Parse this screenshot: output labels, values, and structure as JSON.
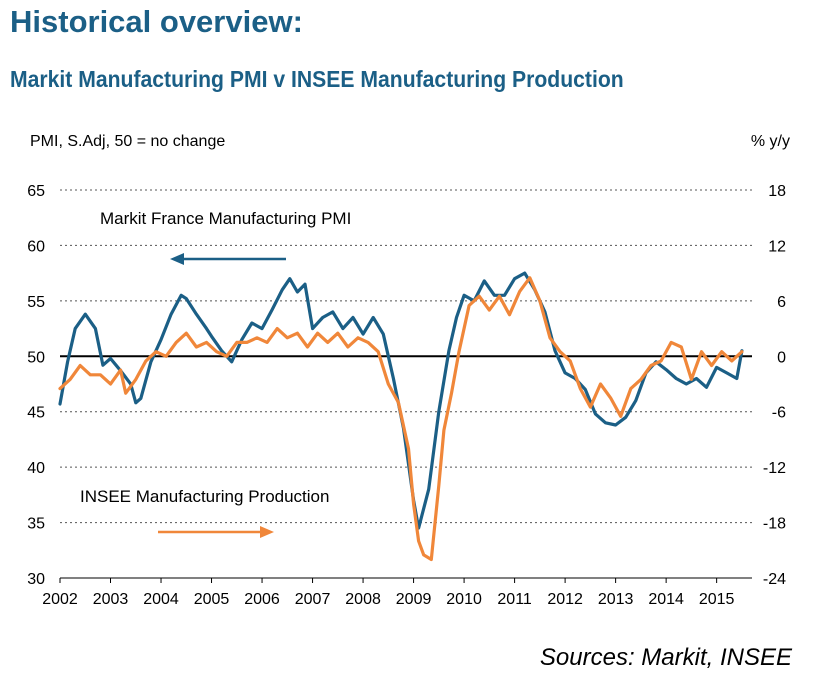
{
  "page": {
    "title": "Historical overview:",
    "subtitle": "Markit Manufacturing PMI v INSEE Manufacturing Production",
    "source": "Sources: Markit, INSEE"
  },
  "colors": {
    "pmi": "#1b5f86",
    "production": "#f0873a",
    "title": "#1b5f86",
    "zero_line": "#000000",
    "grid": "#555555"
  },
  "chart_data": {
    "type": "line",
    "left_axis_title": "PMI, S.Adj, 50 = no change",
    "right_axis_title": "% y/y",
    "ylim_left": [
      30,
      65
    ],
    "ylim_right": [
      -24,
      18
    ],
    "left_ticks": [
      "30",
      "35",
      "40",
      "45",
      "50",
      "55",
      "60",
      "65"
    ],
    "right_ticks": [
      "-24",
      "-18",
      "-12",
      "-6",
      "0",
      "6",
      "12",
      "18"
    ],
    "xlim": [
      2002,
      2015.7
    ],
    "x_ticks": [
      "2002",
      "2003",
      "2004",
      "2005",
      "2006",
      "2007",
      "2008",
      "2009",
      "2010",
      "2011",
      "2012",
      "2013",
      "2014",
      "2015"
    ],
    "grid": "dashed horizontal",
    "reference_line": 50,
    "series": [
      {
        "name": "Markit France Manufacturing PMI",
        "axis": "left",
        "color": "#1b5f86",
        "x": [
          2002.0,
          2002.15,
          2002.3,
          2002.5,
          2002.7,
          2002.85,
          2003.0,
          2003.2,
          2003.4,
          2003.5,
          2003.6,
          2003.8,
          2004.0,
          2004.2,
          2004.4,
          2004.5,
          2004.7,
          2004.9,
          2005.0,
          2005.2,
          2005.4,
          2005.6,
          2005.8,
          2006.0,
          2006.2,
          2006.4,
          2006.55,
          2006.7,
          2006.85,
          2007.0,
          2007.2,
          2007.4,
          2007.6,
          2007.8,
          2008.0,
          2008.2,
          2008.4,
          2008.6,
          2008.8,
          2009.0,
          2009.1,
          2009.3,
          2009.5,
          2009.7,
          2009.85,
          2010.0,
          2010.2,
          2010.4,
          2010.6,
          2010.8,
          2011.0,
          2011.2,
          2011.4,
          2011.6,
          2011.8,
          2012.0,
          2012.2,
          2012.4,
          2012.6,
          2012.8,
          2013.0,
          2013.2,
          2013.4,
          2013.6,
          2013.8,
          2014.0,
          2014.2,
          2014.4,
          2014.6,
          2014.8,
          2015.0,
          2015.2,
          2015.4,
          2015.5
        ],
        "values": [
          45.7,
          49.5,
          52.5,
          53.8,
          52.5,
          49.2,
          49.8,
          48.7,
          47.5,
          45.8,
          46.2,
          49.5,
          51.5,
          53.8,
          55.5,
          55.2,
          53.8,
          52.5,
          51.8,
          50.5,
          49.5,
          51.5,
          53.0,
          52.5,
          54.2,
          56.0,
          57.0,
          55.8,
          56.5,
          52.5,
          53.5,
          54.0,
          52.5,
          53.5,
          52.0,
          53.5,
          52.0,
          48.0,
          43.5,
          37.0,
          34.5,
          38.0,
          45.0,
          50.5,
          53.5,
          55.5,
          55.0,
          56.8,
          55.5,
          55.5,
          57.0,
          57.5,
          56.0,
          54.0,
          50.5,
          48.5,
          48.0,
          47.0,
          44.8,
          44.0,
          43.8,
          44.5,
          46.0,
          48.5,
          49.5,
          48.8,
          48.0,
          47.5,
          48.0,
          47.2,
          49.0,
          48.5,
          48.0,
          50.5
        ]
      },
      {
        "name": "INSEE Manufacturing Production",
        "axis": "right",
        "color": "#f0873a",
        "x": [
          2002.0,
          2002.2,
          2002.4,
          2002.6,
          2002.8,
          2003.0,
          2003.2,
          2003.3,
          2003.5,
          2003.7,
          2003.9,
          2004.1,
          2004.3,
          2004.5,
          2004.7,
          2004.9,
          2005.1,
          2005.3,
          2005.5,
          2005.7,
          2005.9,
          2006.1,
          2006.3,
          2006.5,
          2006.7,
          2006.9,
          2007.1,
          2007.3,
          2007.5,
          2007.7,
          2007.9,
          2008.1,
          2008.3,
          2008.5,
          2008.7,
          2008.9,
          2009.0,
          2009.1,
          2009.2,
          2009.35,
          2009.5,
          2009.6,
          2009.75,
          2009.9,
          2010.1,
          2010.3,
          2010.5,
          2010.7,
          2010.9,
          2011.1,
          2011.3,
          2011.5,
          2011.7,
          2011.9,
          2012.1,
          2012.3,
          2012.5,
          2012.7,
          2012.9,
          2013.1,
          2013.3,
          2013.5,
          2013.7,
          2013.9,
          2014.1,
          2014.3,
          2014.5,
          2014.7,
          2014.9,
          2015.1,
          2015.3,
          2015.5
        ],
        "values": [
          -3.5,
          -2.5,
          -1.0,
          -2.0,
          -2.0,
          -3.0,
          -1.5,
          -4.0,
          -2.5,
          -0.5,
          0.5,
          0.0,
          1.5,
          2.5,
          1.0,
          1.5,
          0.5,
          0.0,
          1.5,
          1.5,
          2.0,
          1.5,
          3.0,
          2.0,
          2.5,
          1.0,
          2.5,
          1.5,
          2.5,
          1.0,
          2.0,
          1.5,
          0.5,
          -3.0,
          -5.0,
          -10.0,
          -16.0,
          -20.0,
          -21.5,
          -22.0,
          -14.0,
          -8.0,
          -4.0,
          0.5,
          5.5,
          6.5,
          5.0,
          6.5,
          4.5,
          7.0,
          8.5,
          6.0,
          2.0,
          0.5,
          -0.5,
          -3.5,
          -5.5,
          -3.0,
          -4.5,
          -6.5,
          -3.5,
          -2.5,
          -1.0,
          -0.5,
          1.5,
          1.0,
          -2.5,
          0.5,
          -1.0,
          0.5,
          -0.5,
          0.5
        ]
      }
    ],
    "annotations": [
      {
        "text": "Markit France Manufacturing PMI",
        "arrow": "left",
        "series": "pmi"
      },
      {
        "text": "INSEE Manufacturing Production",
        "arrow": "right",
        "series": "production"
      }
    ]
  }
}
